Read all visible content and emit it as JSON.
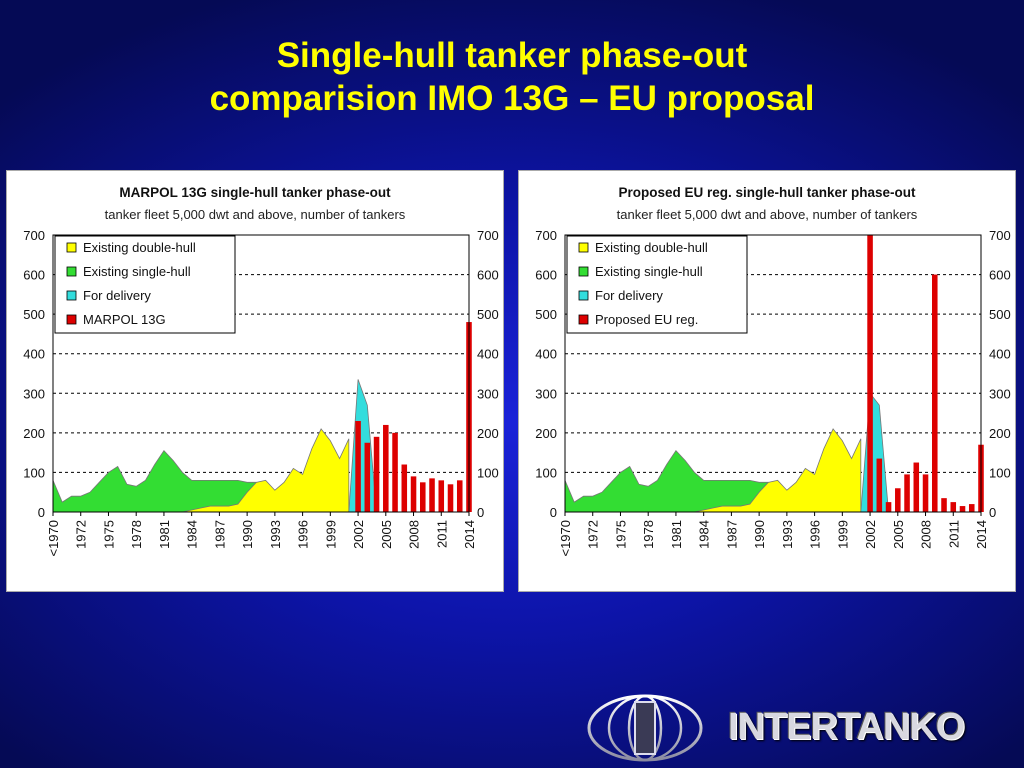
{
  "slide": {
    "title_line1": "Single-hull tanker phase-out",
    "title_line2": "comparision IMO 13G – EU proposal",
    "logo_text": "INTERTANKO"
  },
  "colors": {
    "background": "#0d14a8",
    "title": "#ffff00",
    "double_hull": "#ffff00",
    "single_hull": "#33dd33",
    "for_delivery": "#33dddd",
    "phase_out": "#dd0000"
  },
  "chart_data": [
    {
      "type": "area",
      "title": "MARPOL 13G single-hull tanker phase-out",
      "subtitle": "tanker fleet 5,000 dwt and above, number of tankers",
      "ylim": [
        0,
        700
      ],
      "yticks": [
        0,
        100,
        200,
        300,
        400,
        500,
        600,
        700
      ],
      "xlim": [
        1970,
        2015
      ],
      "xticks": [
        "<1970",
        "1972",
        "1975",
        "1978",
        "1981",
        "1984",
        "1987",
        "1990",
        "1993",
        "1996",
        "1999",
        "2002",
        "2005",
        "2008",
        "2011",
        "2014"
      ],
      "grid": true,
      "legend_position": "top-left",
      "legend": [
        "Existing double-hull",
        "Existing single-hull",
        "For delivery",
        "MARPOL 13G"
      ],
      "series": [
        {
          "name": "Existing single-hull",
          "kind": "area",
          "x": [
            1970,
            1971,
            1972,
            1973,
            1974,
            1975,
            1976,
            1977,
            1978,
            1979,
            1980,
            1981,
            1982,
            1983,
            1984,
            1985,
            1986,
            1987,
            1988,
            1989,
            1990,
            1991,
            1992,
            1993,
            1994,
            1995,
            1996,
            1997,
            1998,
            1999,
            2000,
            2001,
            2002
          ],
          "values": [
            80,
            25,
            40,
            40,
            50,
            75,
            100,
            115,
            70,
            65,
            80,
            120,
            155,
            130,
            100,
            80,
            80,
            80,
            80,
            80,
            80,
            75,
            75,
            70,
            55,
            40,
            20,
            5,
            3,
            2,
            0,
            0,
            0
          ]
        },
        {
          "name": "Existing double-hull",
          "kind": "area",
          "x": [
            1970,
            1971,
            1972,
            1973,
            1974,
            1975,
            1976,
            1977,
            1978,
            1979,
            1980,
            1981,
            1982,
            1983,
            1984,
            1985,
            1986,
            1987,
            1988,
            1989,
            1990,
            1991,
            1992,
            1993,
            1994,
            1995,
            1996,
            1997,
            1998,
            1999,
            2000,
            2001,
            2002
          ],
          "values": [
            0,
            0,
            0,
            0,
            0,
            0,
            0,
            0,
            0,
            0,
            0,
            0,
            0,
            0,
            0,
            5,
            10,
            15,
            15,
            15,
            20,
            50,
            75,
            80,
            55,
            75,
            110,
            95,
            160,
            210,
            180,
            135,
            185
          ]
        },
        {
          "name": "For delivery",
          "kind": "area",
          "x": [
            2002,
            2003,
            2004,
            2005
          ],
          "values": [
            0,
            335,
            270,
            0
          ]
        },
        {
          "name": "MARPOL 13G",
          "kind": "bar",
          "x": [
            2003,
            2004,
            2005,
            2006,
            2007,
            2008,
            2009,
            2010,
            2011,
            2012,
            2013,
            2014,
            2015
          ],
          "values": [
            230,
            175,
            190,
            220,
            200,
            120,
            90,
            75,
            85,
            80,
            70,
            80,
            480
          ]
        }
      ]
    },
    {
      "type": "area",
      "title": "Proposed EU reg. single-hull tanker phase-out",
      "subtitle": "tanker fleet 5,000 dwt and above, number of tankers",
      "ylim": [
        0,
        700
      ],
      "yticks": [
        0,
        100,
        200,
        300,
        400,
        500,
        600,
        700
      ],
      "xlim": [
        1970,
        2015
      ],
      "xticks": [
        "<1970",
        "1972",
        "1975",
        "1978",
        "1981",
        "1984",
        "1987",
        "1990",
        "1993",
        "1996",
        "1999",
        "2002",
        "2005",
        "2008",
        "2011",
        "2014"
      ],
      "grid": true,
      "legend_position": "top-left",
      "legend": [
        "Existing double-hull",
        "Existing single-hull",
        "For delivery",
        "Proposed EU reg."
      ],
      "series": [
        {
          "name": "Existing single-hull",
          "kind": "area",
          "x": [
            1970,
            1971,
            1972,
            1973,
            1974,
            1975,
            1976,
            1977,
            1978,
            1979,
            1980,
            1981,
            1982,
            1983,
            1984,
            1985,
            1986,
            1987,
            1988,
            1989,
            1990,
            1991,
            1992,
            1993,
            1994,
            1995,
            1996,
            1997,
            1998,
            1999,
            2000,
            2001,
            2002
          ],
          "values": [
            80,
            25,
            40,
            40,
            50,
            75,
            100,
            115,
            70,
            65,
            80,
            120,
            155,
            130,
            100,
            80,
            80,
            80,
            80,
            80,
            80,
            75,
            75,
            70,
            55,
            40,
            20,
            5,
            3,
            2,
            0,
            0,
            0
          ]
        },
        {
          "name": "Existing double-hull",
          "kind": "area",
          "x": [
            1970,
            1971,
            1972,
            1973,
            1974,
            1975,
            1976,
            1977,
            1978,
            1979,
            1980,
            1981,
            1982,
            1983,
            1984,
            1985,
            1986,
            1987,
            1988,
            1989,
            1990,
            1991,
            1992,
            1993,
            1994,
            1995,
            1996,
            1997,
            1998,
            1999,
            2000,
            2001,
            2002
          ],
          "values": [
            0,
            0,
            0,
            0,
            0,
            0,
            0,
            0,
            0,
            0,
            0,
            0,
            0,
            0,
            0,
            5,
            10,
            15,
            15,
            15,
            20,
            50,
            75,
            80,
            55,
            75,
            110,
            95,
            160,
            210,
            180,
            135,
            185
          ]
        },
        {
          "name": "For delivery",
          "kind": "area",
          "x": [
            2002,
            2003,
            2004,
            2005
          ],
          "values": [
            0,
            300,
            270,
            0
          ]
        },
        {
          "name": "Proposed EU reg.",
          "kind": "bar",
          "x": [
            2003,
            2004,
            2005,
            2006,
            2007,
            2008,
            2009,
            2010,
            2011,
            2012,
            2013,
            2014,
            2015
          ],
          "values": [
            700,
            135,
            25,
            60,
            95,
            125,
            95,
            600,
            35,
            25,
            15,
            20,
            170
          ]
        }
      ]
    }
  ]
}
